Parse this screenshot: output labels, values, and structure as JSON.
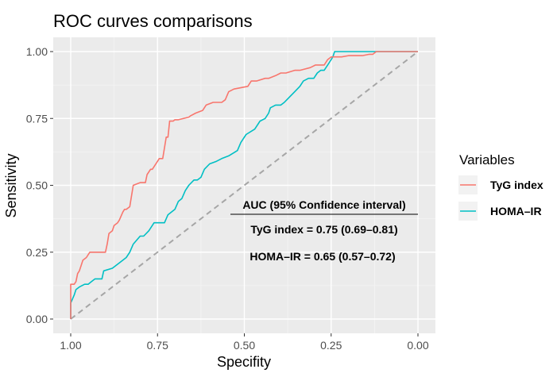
{
  "colors": {
    "tyg": "#F8766D",
    "homa": "#00BFC4",
    "panel_bg": "#EBEBEB",
    "grid_major": "#FFFFFF",
    "grid_minor": "#F4F4F4",
    "reference_line": "#A6A6A6"
  },
  "chart_data": {
    "type": "line",
    "title": "ROC curves comparisons",
    "xlabel": "Specifity",
    "ylabel": "Sensitivity",
    "x_reversed": true,
    "xlim": [
      1.0,
      0.0
    ],
    "ylim": [
      0.0,
      1.0
    ],
    "x_ticks": [
      1.0,
      0.75,
      0.5,
      0.25,
      0.0
    ],
    "x_tick_labels": [
      "1.00",
      "0.75",
      "0.50",
      "0.25",
      "0.00"
    ],
    "y_ticks": [
      0.0,
      0.25,
      0.5,
      0.75,
      1.0
    ],
    "y_tick_labels": [
      "0.00",
      "0.25",
      "0.50",
      "0.75",
      "1.00"
    ],
    "grid": true,
    "legend": {
      "title": "Variables",
      "position": "right",
      "entries": [
        "TyG index",
        "HOMA–IR"
      ]
    },
    "annotations": {
      "header": "AUC (95% Confidence interval)",
      "lines": [
        "TyG index = 0.75 (0.69–0.81)",
        "HOMA–IR = 0.65 (0.57–0.72)"
      ]
    },
    "reference_line": {
      "from": [
        1.0,
        0.0
      ],
      "to": [
        0.0,
        1.0
      ],
      "style": "dashed"
    },
    "series": [
      {
        "name": "TyG index",
        "color_key": "tyg",
        "x": [
          1.0,
          1.0,
          0.99,
          0.985,
          0.98,
          0.975,
          0.97,
          0.965,
          0.955,
          0.95,
          0.945,
          0.93,
          0.9,
          0.895,
          0.89,
          0.88,
          0.875,
          0.865,
          0.86,
          0.85,
          0.845,
          0.84,
          0.83,
          0.82,
          0.8,
          0.785,
          0.78,
          0.77,
          0.765,
          0.76,
          0.75,
          0.745,
          0.735,
          0.725,
          0.72,
          0.715,
          0.705,
          0.7,
          0.69,
          0.66,
          0.655,
          0.64,
          0.62,
          0.61,
          0.59,
          0.565,
          0.555,
          0.545,
          0.53,
          0.49,
          0.48,
          0.465,
          0.44,
          0.43,
          0.41,
          0.395,
          0.38,
          0.355,
          0.34,
          0.31,
          0.295,
          0.27,
          0.26,
          0.25,
          0.24,
          0.22,
          0.2,
          0.16,
          0.14,
          0.13,
          0.12,
          0.0
        ],
        "y": [
          0.0,
          0.13,
          0.13,
          0.14,
          0.17,
          0.18,
          0.2,
          0.22,
          0.23,
          0.24,
          0.25,
          0.25,
          0.25,
          0.28,
          0.32,
          0.33,
          0.35,
          0.36,
          0.37,
          0.4,
          0.41,
          0.41,
          0.42,
          0.5,
          0.51,
          0.51,
          0.54,
          0.56,
          0.56,
          0.57,
          0.59,
          0.6,
          0.6,
          0.68,
          0.68,
          0.74,
          0.74,
          0.745,
          0.745,
          0.755,
          0.76,
          0.77,
          0.78,
          0.8,
          0.81,
          0.81,
          0.82,
          0.85,
          0.86,
          0.87,
          0.89,
          0.89,
          0.9,
          0.9,
          0.91,
          0.92,
          0.92,
          0.93,
          0.93,
          0.94,
          0.95,
          0.95,
          0.97,
          0.98,
          0.98,
          0.98,
          0.985,
          0.985,
          0.99,
          0.99,
          1.0,
          1.0
        ]
      },
      {
        "name": "HOMA–IR",
        "color_key": "homa",
        "x": [
          1.0,
          1.0,
          0.99,
          0.985,
          0.975,
          0.96,
          0.95,
          0.94,
          0.93,
          0.91,
          0.905,
          0.88,
          0.87,
          0.86,
          0.84,
          0.83,
          0.82,
          0.8,
          0.79,
          0.775,
          0.76,
          0.73,
          0.72,
          0.7,
          0.69,
          0.68,
          0.67,
          0.66,
          0.645,
          0.635,
          0.625,
          0.615,
          0.6,
          0.58,
          0.565,
          0.545,
          0.52,
          0.51,
          0.495,
          0.47,
          0.46,
          0.455,
          0.44,
          0.43,
          0.425,
          0.41,
          0.395,
          0.385,
          0.37,
          0.355,
          0.34,
          0.33,
          0.315,
          0.3,
          0.29,
          0.28,
          0.27,
          0.26,
          0.255,
          0.25,
          0.245,
          0.24,
          0.0
        ],
        "y": [
          0.0,
          0.06,
          0.09,
          0.11,
          0.12,
          0.13,
          0.13,
          0.14,
          0.15,
          0.15,
          0.18,
          0.19,
          0.2,
          0.21,
          0.23,
          0.25,
          0.28,
          0.31,
          0.31,
          0.33,
          0.36,
          0.36,
          0.39,
          0.41,
          0.44,
          0.45,
          0.48,
          0.5,
          0.52,
          0.52,
          0.53,
          0.56,
          0.58,
          0.59,
          0.6,
          0.61,
          0.63,
          0.66,
          0.69,
          0.71,
          0.73,
          0.74,
          0.75,
          0.77,
          0.79,
          0.8,
          0.8,
          0.81,
          0.83,
          0.85,
          0.87,
          0.89,
          0.9,
          0.9,
          0.92,
          0.93,
          0.93,
          0.95,
          0.96,
          0.97,
          0.98,
          1.0,
          1.0
        ]
      }
    ]
  }
}
